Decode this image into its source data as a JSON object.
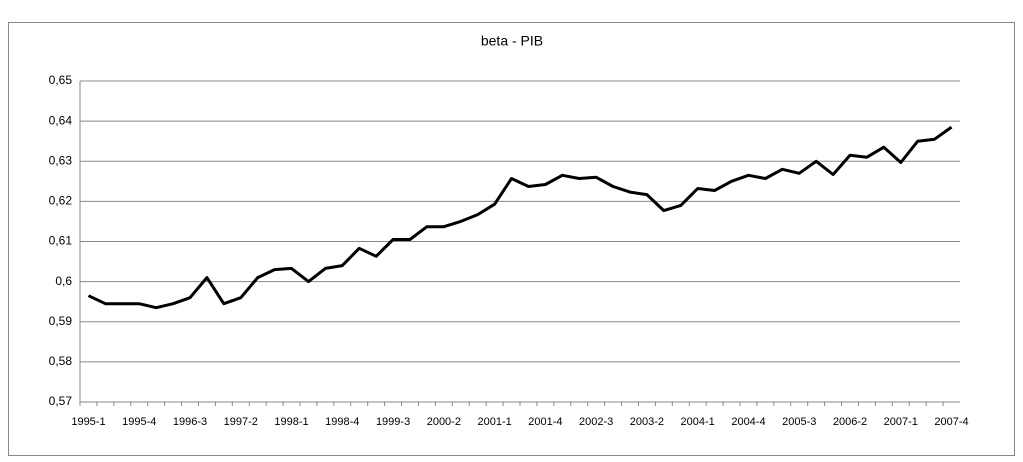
{
  "chart_data": {
    "type": "line",
    "title": "beta - PIB",
    "categories": [
      "1995-1",
      null,
      null,
      "1995-4",
      null,
      null,
      "1996-3",
      null,
      null,
      "1997-2",
      null,
      null,
      "1998-1",
      null,
      null,
      "1998-4",
      null,
      null,
      "1999-3",
      null,
      null,
      "2000-2",
      null,
      null,
      "2001-1",
      null,
      null,
      "2001-4",
      null,
      null,
      "2002-3",
      null,
      null,
      "2003-2",
      null,
      null,
      "2004-1",
      null,
      null,
      "2004-4",
      null,
      null,
      "2005-3",
      null,
      null,
      "2006-2",
      null,
      null,
      "2007-1",
      null,
      null,
      "2007-4"
    ],
    "values": [
      0.5965,
      0.5945,
      0.5945,
      0.5945,
      0.5935,
      0.5945,
      0.596,
      0.601,
      0.5945,
      0.596,
      0.601,
      0.603,
      0.6033,
      0.6,
      0.6033,
      0.604,
      0.6083,
      0.6063,
      0.6105,
      0.6105,
      0.6137,
      0.6137,
      0.615,
      0.6167,
      0.6193,
      0.6257,
      0.6237,
      0.6242,
      0.6265,
      0.6257,
      0.626,
      0.6237,
      0.6223,
      0.6217,
      0.6177,
      0.619,
      0.6232,
      0.6227,
      0.625,
      0.6265,
      0.6257,
      0.628,
      0.627,
      0.63,
      0.6267,
      0.6315,
      0.631,
      0.6335,
      0.6297,
      0.635,
      0.6355,
      0.6385
    ],
    "color": "#000000",
    "ylim": [
      0.57,
      0.65
    ],
    "yticks": [
      {
        "value": 0.57,
        "label": "0,57"
      },
      {
        "value": 0.58,
        "label": "0,58"
      },
      {
        "value": 0.59,
        "label": "0,59"
      },
      {
        "value": 0.6,
        "label": "0,6"
      },
      {
        "value": 0.61,
        "label": "0,61"
      },
      {
        "value": 0.62,
        "label": "0,62"
      },
      {
        "value": 0.63,
        "label": "0,63"
      },
      {
        "value": 0.64,
        "label": "0,64"
      },
      {
        "value": 0.65,
        "label": "0,65"
      }
    ],
    "grid": true
  }
}
